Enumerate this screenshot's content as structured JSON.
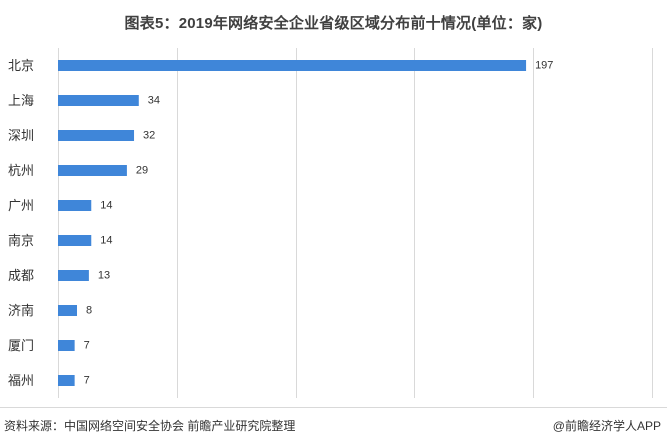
{
  "chart_data": {
    "type": "bar",
    "orientation": "horizontal",
    "title": "图表5：2019年网络安全企业省级区域分布前十情况(单位：家)",
    "categories": [
      "北京",
      "上海",
      "深圳",
      "杭州",
      "广州",
      "南京",
      "成都",
      "济南",
      "厦门",
      "福州"
    ],
    "values": [
      197,
      34,
      32,
      29,
      14,
      14,
      13,
      8,
      7,
      7
    ],
    "value_labels": [
      "197",
      "34",
      "32",
      "29",
      "14",
      "14",
      "13",
      "8",
      "7",
      "7"
    ],
    "xlim": [
      0,
      250
    ],
    "gridlines": "vertical",
    "bar_color": "#3f86d9",
    "grid_color": "#d9d9d9",
    "legend": "none"
  },
  "footer": {
    "source": "资料来源：中国网络空间安全协会 前瞻产业研究院整理",
    "brand": "@前瞻经济学人APP"
  }
}
